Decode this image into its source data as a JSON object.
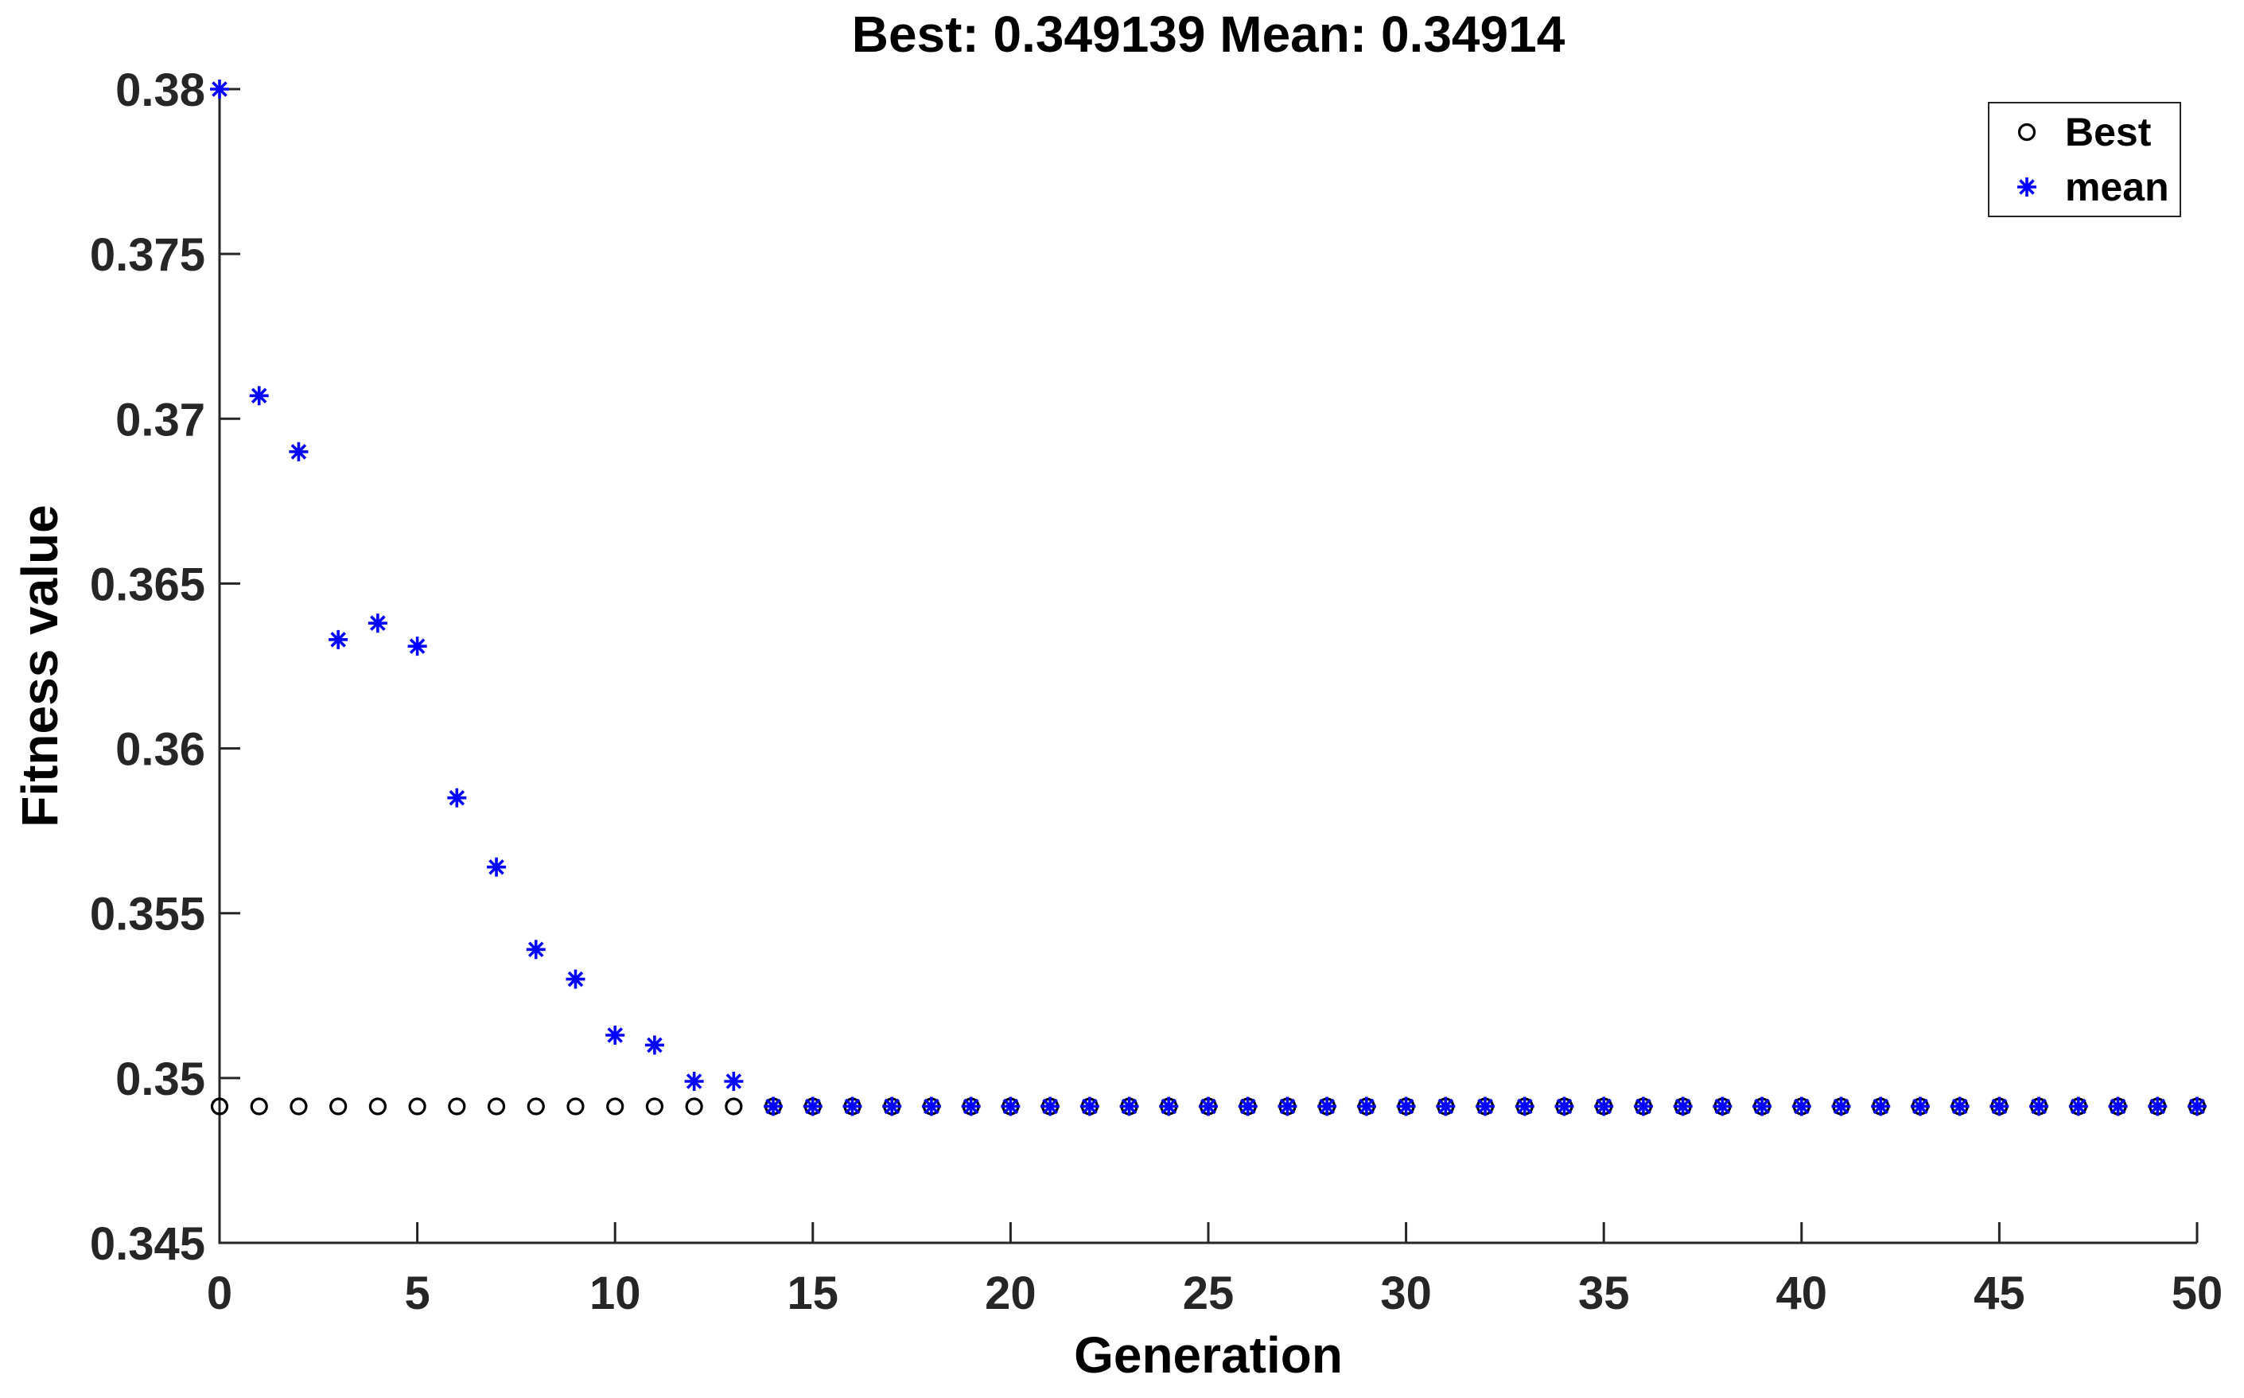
{
  "colors": {
    "best_series": "#000000",
    "mean_series": "#0000ff",
    "axis": "#262626",
    "text": "#000000",
    "background": "#ffffff"
  },
  "chart_data": {
    "type": "scatter",
    "title": "Best: 0.349139 Mean: 0.34914",
    "xlabel": "Generation",
    "ylabel": "Fitness value",
    "xlim": [
      0,
      50
    ],
    "ylim": [
      0.345,
      0.38
    ],
    "xticks": [
      0,
      5,
      10,
      15,
      20,
      25,
      30,
      35,
      40,
      45,
      50
    ],
    "yticks": [
      0.345,
      0.35,
      0.355,
      0.36,
      0.365,
      0.37,
      0.375,
      0.38
    ],
    "grid": false,
    "legend_position": "northeast",
    "legend": [
      {
        "label": "Best",
        "marker": "circle",
        "color": "#000000"
      },
      {
        "label": "mean",
        "marker": "asterisk",
        "color": "#0000ff"
      }
    ],
    "series": [
      {
        "name": "Best",
        "marker": "circle",
        "color": "#000000",
        "x": [
          0,
          1,
          2,
          3,
          4,
          5,
          6,
          7,
          8,
          9,
          10,
          11,
          12,
          13,
          14,
          15,
          16,
          17,
          18,
          19,
          20,
          21,
          22,
          23,
          24,
          25,
          26,
          27,
          28,
          29,
          30,
          31,
          32,
          33,
          34,
          35,
          36,
          37,
          38,
          39,
          40,
          41,
          42,
          43,
          44,
          45,
          46,
          47,
          48,
          49,
          50
        ],
        "y": [
          0.349139,
          0.349139,
          0.349139,
          0.349139,
          0.349139,
          0.349139,
          0.349139,
          0.349139,
          0.349139,
          0.349139,
          0.349139,
          0.349139,
          0.349139,
          0.349139,
          0.349139,
          0.349139,
          0.349139,
          0.349139,
          0.349139,
          0.349139,
          0.349139,
          0.349139,
          0.349139,
          0.349139,
          0.349139,
          0.349139,
          0.349139,
          0.349139,
          0.349139,
          0.349139,
          0.349139,
          0.349139,
          0.349139,
          0.349139,
          0.349139,
          0.349139,
          0.349139,
          0.349139,
          0.349139,
          0.349139,
          0.349139,
          0.349139,
          0.349139,
          0.349139,
          0.349139,
          0.349139,
          0.349139,
          0.349139,
          0.349139,
          0.349139,
          0.349139
        ]
      },
      {
        "name": "mean",
        "marker": "asterisk",
        "color": "#0000ff",
        "x": [
          0,
          1,
          2,
          3,
          4,
          5,
          6,
          7,
          8,
          9,
          10,
          11,
          12,
          13,
          14,
          15,
          16,
          17,
          18,
          19,
          20,
          21,
          22,
          23,
          24,
          25,
          26,
          27,
          28,
          29,
          30,
          31,
          32,
          33,
          34,
          35,
          36,
          37,
          38,
          39,
          40,
          41,
          42,
          43,
          44,
          45,
          46,
          47,
          48,
          49,
          50
        ],
        "y": [
          0.38,
          0.3707,
          0.369,
          0.3633,
          0.3638,
          0.3631,
          0.3585,
          0.3564,
          0.3539,
          0.353,
          0.3513,
          0.351,
          0.3499,
          0.3499,
          0.34914,
          0.34914,
          0.34914,
          0.34914,
          0.34914,
          0.34914,
          0.34914,
          0.34914,
          0.34914,
          0.34914,
          0.34914,
          0.34914,
          0.34914,
          0.34914,
          0.34914,
          0.34914,
          0.34914,
          0.34914,
          0.34914,
          0.34914,
          0.34914,
          0.34914,
          0.34914,
          0.34914,
          0.34914,
          0.34914,
          0.34914,
          0.34914,
          0.34914,
          0.34914,
          0.34914,
          0.34914,
          0.34914,
          0.34914,
          0.34914,
          0.34914,
          0.34914
        ]
      }
    ]
  }
}
